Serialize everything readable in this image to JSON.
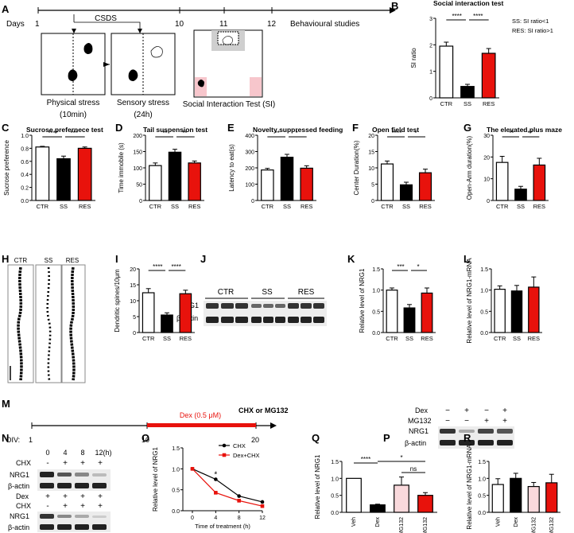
{
  "panels": {
    "A": {
      "letter": "A",
      "days_label": "Days",
      "ticks": [
        "1",
        "10",
        "11",
        "12"
      ],
      "csds_label": "CSDS",
      "behaviour_label": "Behavioural studies",
      "physical_label": "Physical stress",
      "physical_dur": "(10min)",
      "sensory_label": "Sensory stress",
      "sensory_dur": "(24h)",
      "si_label": "Social Interaction Test (SI)"
    },
    "H": {
      "letter": "H",
      "labels": [
        "CTR",
        "SS",
        "RES"
      ]
    },
    "J": {
      "letter": "J",
      "groups": [
        "CTR",
        "SS",
        "RES"
      ],
      "rows": [
        "NRG1",
        "β-actin"
      ]
    },
    "M": {
      "letter": "M",
      "div_label": "DIV:",
      "ticks": [
        "1",
        "10",
        "20"
      ],
      "dex_label": "Dex (0.5 μM)",
      "drug_label": "CHX or MG132"
    },
    "N": {
      "letter": "N",
      "times": [
        "0",
        "4",
        "8",
        "12(h)"
      ],
      "chx_label": "CHX",
      "dex_label": "Dex",
      "chx_row_top": [
        "-",
        "+",
        "+",
        "+"
      ],
      "dex_row": [
        "+",
        "+",
        "+",
        "+"
      ],
      "chx_row_bottom": [
        "-",
        "+",
        "+",
        "+"
      ],
      "rows": [
        "NRG1",
        "β-actin"
      ]
    },
    "P": {
      "letter": "P",
      "dex_label": "Dex",
      "mg_label": "MG132",
      "dex_row": [
        "−",
        "+",
        "−",
        "+"
      ],
      "mg_row": [
        "−",
        "−",
        "+",
        "+"
      ],
      "rows": [
        "NRG1",
        "β-actin"
      ]
    }
  },
  "chart_data": [
    {
      "id": "B",
      "type": "bar",
      "letter": "B",
      "title": "Social interaction test",
      "ylabel": "SI ratio",
      "xlabel": "",
      "categories": [
        "CTR",
        "SS",
        "RES"
      ],
      "values": [
        1.95,
        0.43,
        1.68
      ],
      "errors": [
        0.15,
        0.08,
        0.18
      ],
      "ylim": [
        0,
        3
      ],
      "yticks": [
        "0",
        "1",
        "2",
        "3"
      ],
      "colors": [
        "#ffffff",
        "#000000",
        "#e8120c"
      ],
      "sig": [
        {
          "from": 0,
          "to": 1,
          "label": "****"
        },
        {
          "from": 1,
          "to": 2,
          "label": "****"
        }
      ],
      "notes": [
        "SS: SI ratio<1",
        "RES: SI ratio>1"
      ]
    },
    {
      "id": "C",
      "type": "bar",
      "letter": "C",
      "title": "Sucrose prefernece test",
      "ylabel": "Sucrose preference",
      "xlabel": "",
      "categories": [
        "CTR",
        "SS",
        "RES"
      ],
      "values": [
        0.82,
        0.64,
        0.8
      ],
      "errors": [
        0.01,
        0.04,
        0.02
      ],
      "ylim": [
        0,
        1
      ],
      "yticks": [
        "0.0",
        "0.2",
        "0.4",
        "0.6",
        "0.8",
        "1.0"
      ],
      "colors": [
        "#ffffff",
        "#000000",
        "#e8120c"
      ],
      "sig": [
        {
          "from": 0,
          "to": 1,
          "label": "****"
        },
        {
          "from": 1,
          "to": 2,
          "label": "***"
        }
      ]
    },
    {
      "id": "D",
      "type": "bar",
      "letter": "D",
      "title": "Tail suspension test",
      "ylabel": "Time immobile (s)",
      "xlabel": "",
      "categories": [
        "CTR",
        "SS",
        "RES"
      ],
      "values": [
        107,
        148,
        115
      ],
      "errors": [
        8,
        9,
        6
      ],
      "ylim": [
        0,
        200
      ],
      "yticks": [
        "0",
        "50",
        "100",
        "150",
        "200"
      ],
      "colors": [
        "#ffffff",
        "#000000",
        "#e8120c"
      ],
      "sig": [
        {
          "from": 0,
          "to": 1,
          "label": "**"
        },
        {
          "from": 1,
          "to": 2,
          "label": "**"
        }
      ]
    },
    {
      "id": "E",
      "type": "bar",
      "letter": "E",
      "title": "Novelty suppressed feeding",
      "ylabel": "Latency to eat(s)",
      "xlabel": "",
      "categories": [
        "CTR",
        "SS",
        "RES"
      ],
      "values": [
        187,
        265,
        198
      ],
      "errors": [
        10,
        18,
        15
      ],
      "ylim": [
        0,
        400
      ],
      "yticks": [
        "0",
        "100",
        "200",
        "300",
        "400"
      ],
      "colors": [
        "#ffffff",
        "#000000",
        "#e8120c"
      ],
      "sig": [
        {
          "from": 0,
          "to": 1,
          "label": "**"
        },
        {
          "from": 1,
          "to": 2,
          "label": "*"
        }
      ]
    },
    {
      "id": "F",
      "type": "bar",
      "letter": "F",
      "title": "Open field test",
      "ylabel": "Center Duration(%)",
      "xlabel": "",
      "categories": [
        "CTR",
        "SS",
        "RES"
      ],
      "values": [
        11.2,
        4.8,
        8.5
      ],
      "errors": [
        0.9,
        0.8,
        1.1
      ],
      "ylim": [
        0,
        20
      ],
      "yticks": [
        "0",
        "5",
        "10",
        "15",
        "20"
      ],
      "colors": [
        "#ffffff",
        "#000000",
        "#e8120c"
      ],
      "sig": [
        {
          "from": 0,
          "to": 1,
          "label": "****"
        },
        {
          "from": 1,
          "to": 2,
          "label": "*"
        }
      ]
    },
    {
      "id": "G",
      "type": "bar",
      "letter": "G",
      "title": "The elevated plus maze",
      "ylabel": "Open-Arm duration(%)",
      "xlabel": "",
      "categories": [
        "CTR",
        "SS",
        "RES"
      ],
      "values": [
        17.5,
        5.2,
        16.3
      ],
      "errors": [
        2.8,
        1.3,
        3.1
      ],
      "ylim": [
        0,
        30
      ],
      "yticks": [
        "0",
        "10",
        "20",
        "30"
      ],
      "colors": [
        "#ffffff",
        "#000000",
        "#e8120c"
      ],
      "sig": [
        {
          "from": 0,
          "to": 1,
          "label": "**"
        },
        {
          "from": 1,
          "to": 2,
          "label": "**"
        }
      ]
    },
    {
      "id": "I",
      "type": "bar",
      "letter": "I",
      "title": "",
      "ylabel": "Dendritic spines/10μm",
      "xlabel": "",
      "categories": [
        "CTR",
        "SS",
        "RES"
      ],
      "values": [
        12.5,
        5.5,
        12.2
      ],
      "errors": [
        1.3,
        0.7,
        1.1
      ],
      "ylim": [
        0,
        20
      ],
      "yticks": [
        "0",
        "5",
        "10",
        "15",
        "20"
      ],
      "colors": [
        "#ffffff",
        "#000000",
        "#e8120c"
      ],
      "sig": [
        {
          "from": 0,
          "to": 1,
          "label": "****"
        },
        {
          "from": 1,
          "to": 2,
          "label": "****"
        }
      ]
    },
    {
      "id": "K",
      "type": "bar",
      "letter": "K",
      "title": "",
      "ylabel": "Relative level of NRG1",
      "xlabel": "",
      "categories": [
        "CTR",
        "SS",
        "RES"
      ],
      "values": [
        1.0,
        0.58,
        0.93
      ],
      "errors": [
        0.05,
        0.08,
        0.12
      ],
      "ylim": [
        0,
        1.5
      ],
      "yticks": [
        "0.0",
        "0.5",
        "1.0",
        "1.5"
      ],
      "colors": [
        "#ffffff",
        "#000000",
        "#e8120c"
      ],
      "sig": [
        {
          "from": 0,
          "to": 1,
          "label": "***"
        },
        {
          "from": 1,
          "to": 2,
          "label": "*"
        }
      ]
    },
    {
      "id": "L",
      "type": "bar",
      "letter": "L",
      "title": "",
      "ylabel": "Relative level of NRG1-mRNA",
      "xlabel": "",
      "categories": [
        "CTR",
        "SS",
        "RES"
      ],
      "values": [
        1.02,
        0.98,
        1.07
      ],
      "errors": [
        0.08,
        0.13,
        0.24
      ],
      "ylim": [
        0,
        1.5
      ],
      "yticks": [
        "0.0",
        "0.5",
        "1.0",
        "1.5"
      ],
      "colors": [
        "#ffffff",
        "#000000",
        "#e8120c"
      ],
      "sig": []
    },
    {
      "id": "O",
      "type": "line",
      "letter": "O",
      "title": "",
      "ylabel": "Relative level of NRG1",
      "xlabel": "Time of treatment (h)",
      "x": [
        0,
        4,
        8,
        12
      ],
      "xlim": [
        0,
        12
      ],
      "xticks": [
        "0",
        "4",
        "8",
        "12"
      ],
      "ylim": [
        0,
        1.5
      ],
      "yticks": [
        "0.0",
        "0.5",
        "1.0",
        "1.5"
      ],
      "series": [
        {
          "name": "CHX",
          "values": [
            1.0,
            0.75,
            0.35,
            0.21
          ],
          "color": "#000000",
          "marker": "circle"
        },
        {
          "name": "Dex+CHX",
          "values": [
            1.0,
            0.43,
            0.24,
            0.11
          ],
          "color": "#e8120c",
          "marker": "square"
        }
      ],
      "annotations": [
        {
          "x": 4,
          "label": "*"
        }
      ],
      "legend": "top-right"
    },
    {
      "id": "Q",
      "type": "bar",
      "letter": "Q",
      "title": "",
      "ylabel": "Relative level of NRG1",
      "xlabel": "",
      "categories": [
        "Veh",
        "Dex",
        "Veh+MG132",
        "Dex+MG132"
      ],
      "values": [
        1.0,
        0.22,
        0.8,
        0.5
      ],
      "errors": [
        0,
        0.02,
        0.24,
        0.08
      ],
      "ylim": [
        0,
        1.5
      ],
      "yticks": [
        "0.0",
        "0.5",
        "1.0",
        "1.5"
      ],
      "colors": [
        "#ffffff",
        "#000000",
        "#f9d9dc",
        "#e8120c"
      ],
      "sig": [
        {
          "from": 0,
          "to": 1,
          "label": "****"
        },
        {
          "from": 1,
          "to": 3,
          "label": "*"
        },
        {
          "from": 2,
          "to": 3,
          "label": "ns"
        }
      ]
    },
    {
      "id": "R",
      "type": "bar",
      "letter": "R",
      "title": "",
      "ylabel": "Relative level of NRG1-mRNA",
      "xlabel": "",
      "categories": [
        "Veh",
        "Dex",
        "Veh+MG132",
        "Dex+MG132"
      ],
      "values": [
        0.82,
        1.0,
        0.76,
        0.87
      ],
      "errors": [
        0.17,
        0.15,
        0.12,
        0.25
      ],
      "ylim": [
        0,
        1.5
      ],
      "yticks": [
        "0.0",
        "0.5",
        "1.0",
        "1.5"
      ],
      "colors": [
        "#ffffff",
        "#000000",
        "#f9d9dc",
        "#e8120c"
      ],
      "sig": []
    }
  ]
}
